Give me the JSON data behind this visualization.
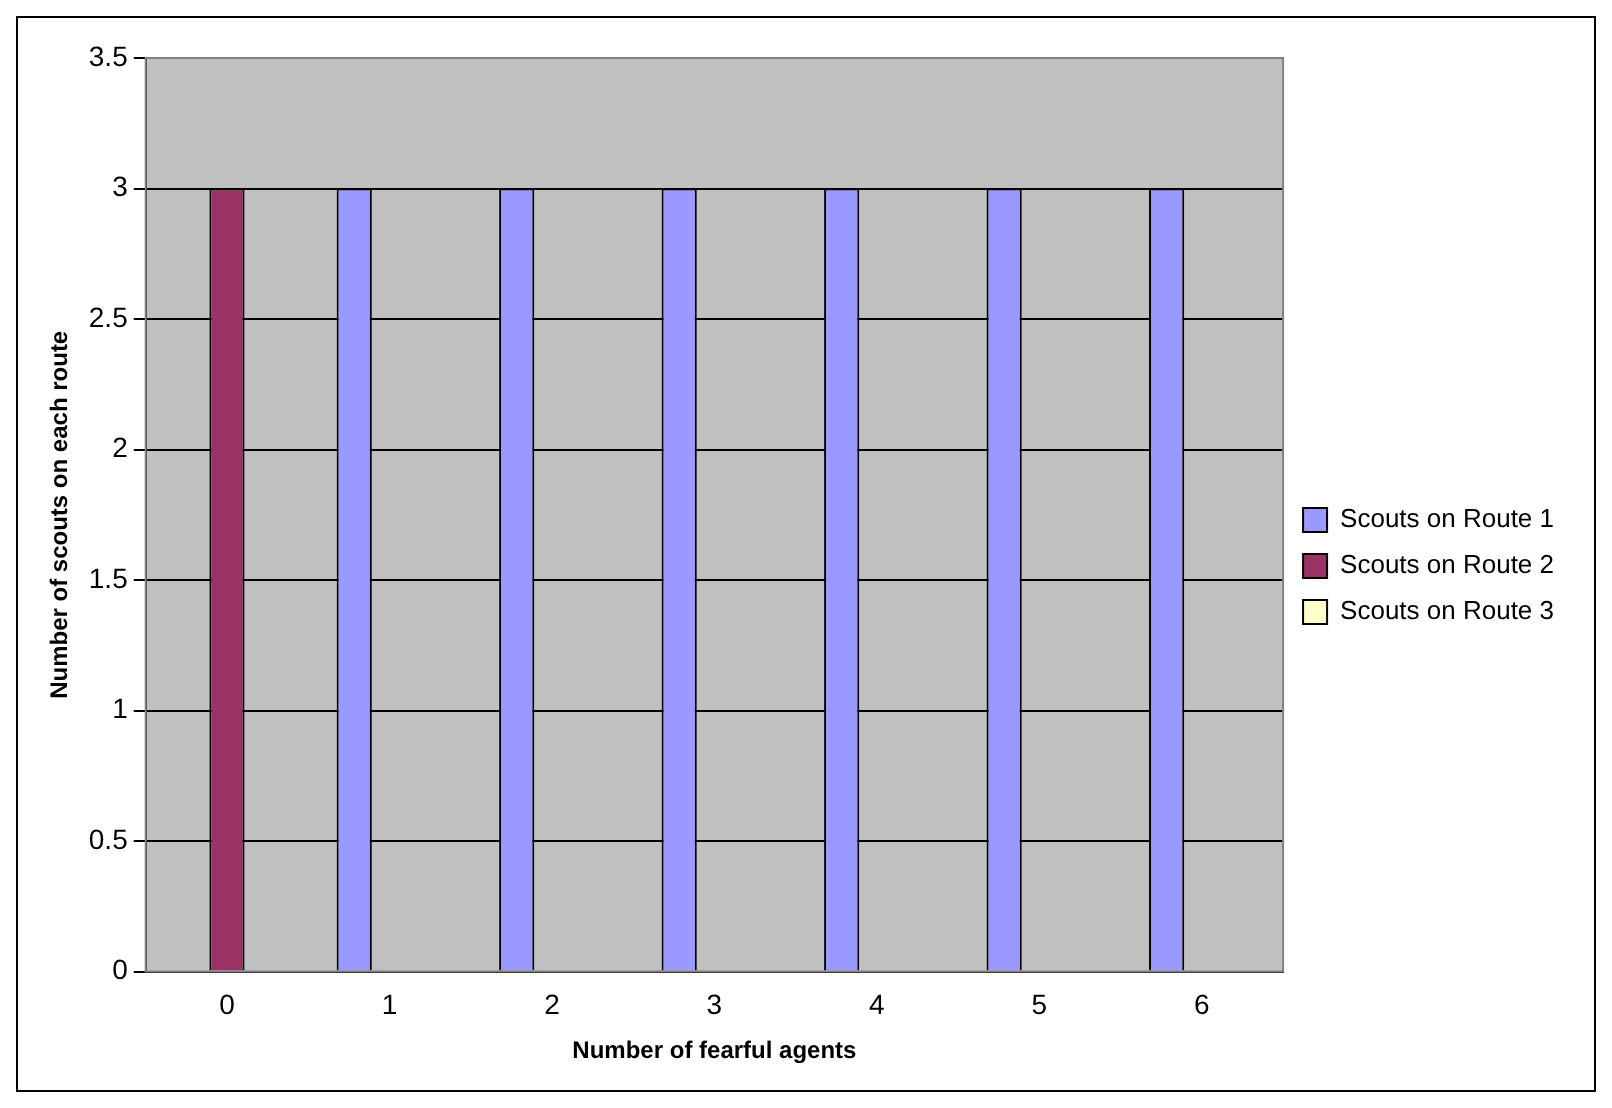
{
  "chart_data": {
    "type": "bar",
    "xlabel": "Number of fearful agents",
    "ylabel": "Number of scouts on each route",
    "categories": [
      "0",
      "1",
      "2",
      "3",
      "4",
      "5",
      "6"
    ],
    "series": [
      {
        "name": "Scouts on Route 1",
        "color": "#9999ff",
        "values": [
          0,
          3,
          3,
          3,
          3,
          3,
          3
        ]
      },
      {
        "name": "Scouts on Route 2",
        "color": "#993366",
        "values": [
          3,
          0,
          0,
          0,
          0,
          0,
          0
        ]
      },
      {
        "name": "Scouts on Route 3",
        "color": "#ffffcc",
        "values": [
          0,
          0,
          0,
          0,
          0,
          0,
          0
        ]
      }
    ],
    "ylim": [
      0,
      3.5
    ],
    "yticks": [
      0,
      0.5,
      1,
      1.5,
      2,
      2.5,
      3,
      3.5
    ],
    "grid": "y",
    "legend": "right"
  }
}
